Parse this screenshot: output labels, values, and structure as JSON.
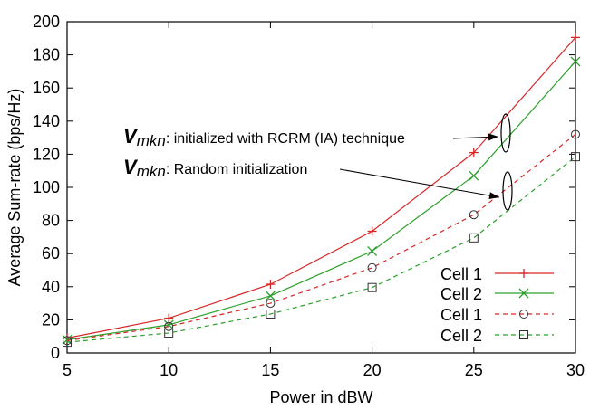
{
  "chart_data": {
    "type": "line",
    "title": "",
    "xlabel": "Power in dBW",
    "ylabel": "Average Sum-rate (bps/Hz)",
    "xlim": [
      5,
      30
    ],
    "ylim": [
      0,
      200
    ],
    "xticks": [
      5,
      10,
      15,
      20,
      25,
      30
    ],
    "yticks": [
      0,
      20,
      40,
      60,
      80,
      100,
      120,
      140,
      160,
      180,
      200
    ],
    "grid": false,
    "legend_position": "bottom-right",
    "x": [
      5,
      10,
      15,
      20,
      25,
      30
    ],
    "series": [
      {
        "name": "Cell 1",
        "color": "#d62728",
        "dash": "solid",
        "marker": "plus",
        "values": [
          9,
          21,
          41.5,
          73.5,
          121,
          190.5
        ]
      },
      {
        "name": "Cell 2",
        "color": "#2ca02c",
        "dash": "solid",
        "marker": "cross",
        "values": [
          8,
          17,
          34.5,
          61.5,
          107,
          176
        ]
      },
      {
        "name": "Cell 1",
        "color": "#d62728",
        "dash": "dashed",
        "marker": "circle",
        "values": [
          7.5,
          16,
          30,
          51.5,
          83.5,
          132
        ]
      },
      {
        "name": "Cell 2",
        "color": "#2ca02c",
        "dash": "dashed",
        "marker": "square",
        "values": [
          6.5,
          12,
          23.5,
          39.5,
          69.5,
          118.5
        ]
      }
    ],
    "annotations": [
      {
        "var": "V",
        "sub": "mkn",
        "text": ": initialized with RCRM (IA) technique"
      },
      {
        "var": "V",
        "sub": "mkn",
        "text": ": Random initialization"
      }
    ]
  }
}
